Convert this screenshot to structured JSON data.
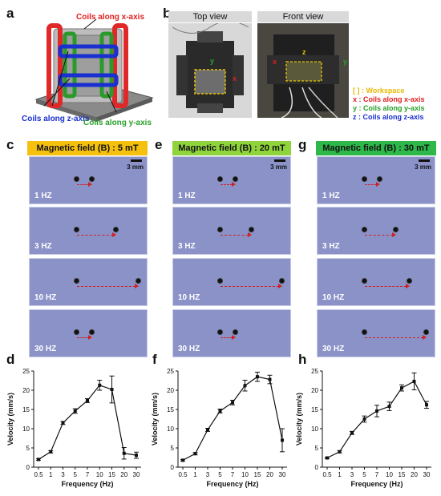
{
  "panels": {
    "a": {
      "letter": "a",
      "labels": {
        "x": "Coils along x-axis",
        "z": "Coils along z-axis",
        "y": "Coils along y-axis"
      }
    },
    "b": {
      "letter": "b",
      "top_view": "Top view",
      "front_view": "Front view",
      "legend": [
        {
          "text": "Workspace",
          "color": "#e8b800",
          "prefix": "[ ] : "
        },
        {
          "text": "x : Coils along x-axis",
          "color": "#e02020"
        },
        {
          "text": "y : Coils along y-axis",
          "color": "#2aa02a"
        },
        {
          "text": "z : Coils along z-axis",
          "color": "#1a2fd0"
        }
      ],
      "axis_marks": {
        "y": "y",
        "x": "x",
        "z": "z"
      }
    }
  },
  "frames": [
    {
      "letter": "c",
      "field": "Magnetic field (B) : 5 mT",
      "banner_color": "#f5c10e",
      "scale": "3 mm",
      "rows": [
        {
          "freq": "1 HZ",
          "start": 0.4,
          "end": 0.53
        },
        {
          "freq": "3 HZ",
          "start": 0.4,
          "end": 0.73
        },
        {
          "freq": "10 HZ",
          "start": 0.4,
          "end": 0.92
        },
        {
          "freq": "30 HZ",
          "start": 0.4,
          "end": 0.53
        }
      ]
    },
    {
      "letter": "e",
      "field": "Magnetic field (B) : 20 mT",
      "banner_color": "#8fd43c",
      "scale": "3 mm",
      "rows": [
        {
          "freq": "1 HZ",
          "start": 0.4,
          "end": 0.53
        },
        {
          "freq": "3 HZ",
          "start": 0.4,
          "end": 0.66
        },
        {
          "freq": "10 HZ",
          "start": 0.4,
          "end": 0.92
        },
        {
          "freq": "30 HZ",
          "start": 0.4,
          "end": 0.53
        }
      ]
    },
    {
      "letter": "g",
      "field": "Magnetic field (B) : 30 mT",
      "banner_color": "#2eb84a",
      "scale": "3 mm",
      "rows": [
        {
          "freq": "1 HZ",
          "start": 0.4,
          "end": 0.53
        },
        {
          "freq": "3 HZ",
          "start": 0.4,
          "end": 0.66
        },
        {
          "freq": "10 HZ",
          "start": 0.4,
          "end": 0.78
        },
        {
          "freq": "30 HZ",
          "start": 0.4,
          "end": 0.92
        }
      ]
    }
  ],
  "chart_data": [
    {
      "letter": "d",
      "type": "line",
      "xlabel": "Frequency (Hz)",
      "ylabel": "Velocity (mm/s)",
      "categories": [
        "0.5",
        "1",
        "3",
        "5",
        "7",
        "10",
        "15",
        "20",
        "30"
      ],
      "ylim": [
        0,
        25
      ],
      "yticks": [
        0,
        5,
        10,
        15,
        20,
        25
      ],
      "values": [
        2.0,
        4.0,
        11.5,
        14.6,
        17.3,
        21.3,
        20.2,
        3.6,
        3.1
      ],
      "errors": [
        0.2,
        0.3,
        0.4,
        0.6,
        0.5,
        1.3,
        3.5,
        1.5,
        0.8
      ]
    },
    {
      "letter": "f",
      "type": "line",
      "xlabel": "Frequency (Hz)",
      "ylabel": "Velocity (mm/s)",
      "categories": [
        "0.5",
        "1",
        "3",
        "5",
        "7",
        "10",
        "15",
        "20",
        "30"
      ],
      "ylim": [
        0,
        25
      ],
      "yticks": [
        0,
        5,
        10,
        15,
        20,
        25
      ],
      "values": [
        1.8,
        3.5,
        9.7,
        14.6,
        16.8,
        21.2,
        23.5,
        22.8,
        7.0
      ],
      "errors": [
        0.2,
        0.3,
        0.4,
        0.5,
        0.6,
        1.4,
        1.2,
        1.1,
        3.0
      ]
    },
    {
      "letter": "h",
      "type": "line",
      "xlabel": "Frequency (Hz)",
      "ylabel": "Velocity (mm/s)",
      "categories": [
        "0.5",
        "1",
        "3",
        "5",
        "7",
        "10",
        "15",
        "20",
        "30"
      ],
      "ylim": [
        0,
        25
      ],
      "yticks": [
        0,
        5,
        10,
        15,
        20,
        25
      ],
      "values": [
        2.4,
        4.0,
        8.9,
        12.5,
        14.6,
        15.8,
        20.6,
        22.3,
        16.2
      ],
      "errors": [
        0.2,
        0.3,
        0.4,
        0.8,
        1.5,
        1.1,
        0.8,
        2.2,
        0.9
      ]
    }
  ]
}
